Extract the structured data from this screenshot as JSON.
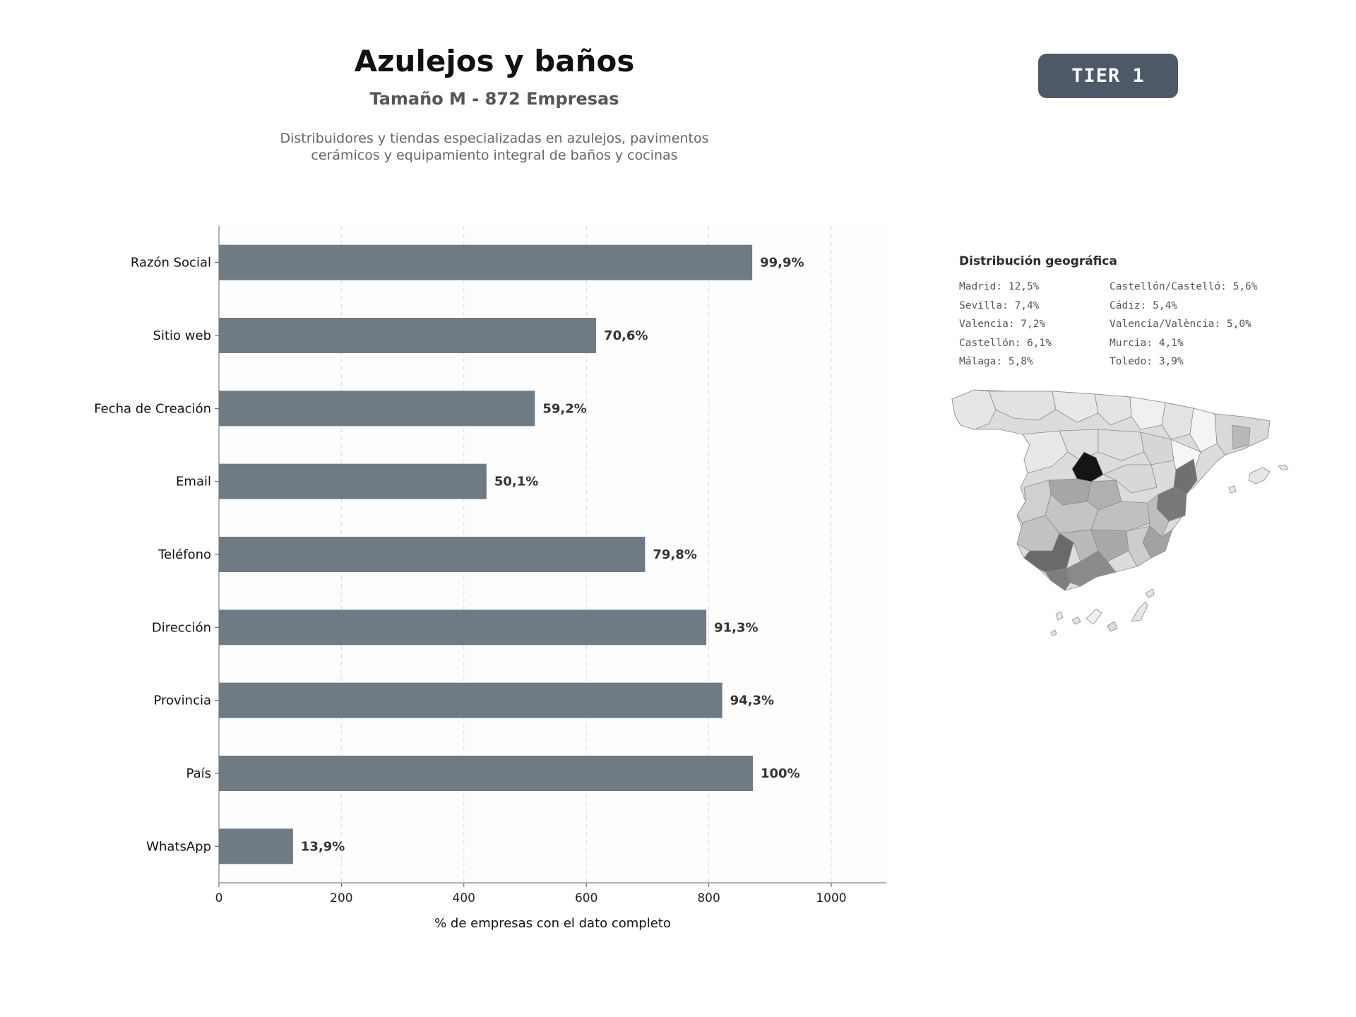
{
  "header": {
    "title": "Azulejos y baños",
    "subtitle": "Tamaño M - 872 Empresas",
    "description_lines": [
      "Distribuidores y tiendas especializadas en azulejos, pavimentos",
      "cerámicos y equipamiento integral de baños y cocinas"
    ],
    "tier_label": "TIER 1"
  },
  "chart_data": {
    "type": "bar",
    "orientation": "horizontal",
    "categories": [
      "Razón Social",
      "Sitio web",
      "Fecha de Creación",
      "Email",
      "Teléfono",
      "Dirección",
      "Provincia",
      "País",
      "WhatsApp"
    ],
    "values": [
      871,
      616,
      516,
      437,
      696,
      796,
      822,
      872,
      121
    ],
    "value_labels": [
      "99,9%",
      "70,6%",
      "59,2%",
      "50,1%",
      "79,8%",
      "91,3%",
      "94,3%",
      "100%",
      "13,9%"
    ],
    "xlabel": "% de empresas con el dato completo",
    "ylabel": "",
    "xlim": [
      0,
      1090
    ],
    "xticks": [
      0,
      200,
      400,
      600,
      800,
      1000
    ],
    "grid": "x-dashed",
    "bar_color": "#6e7a84"
  },
  "geo": {
    "title": "Distribución geográfica",
    "items": [
      "Madrid: 12,5%",
      "Sevilla: 7,4%",
      "Valencia: 7,2%",
      "Castellón: 6,1%",
      "Málaga: 5,8%",
      "Castellón/Castelló: 5,6%",
      "Cádiz: 5,4%",
      "Valencia/València: 5,0%",
      "Murcia: 4,1%",
      "Toledo: 3,9%"
    ]
  }
}
